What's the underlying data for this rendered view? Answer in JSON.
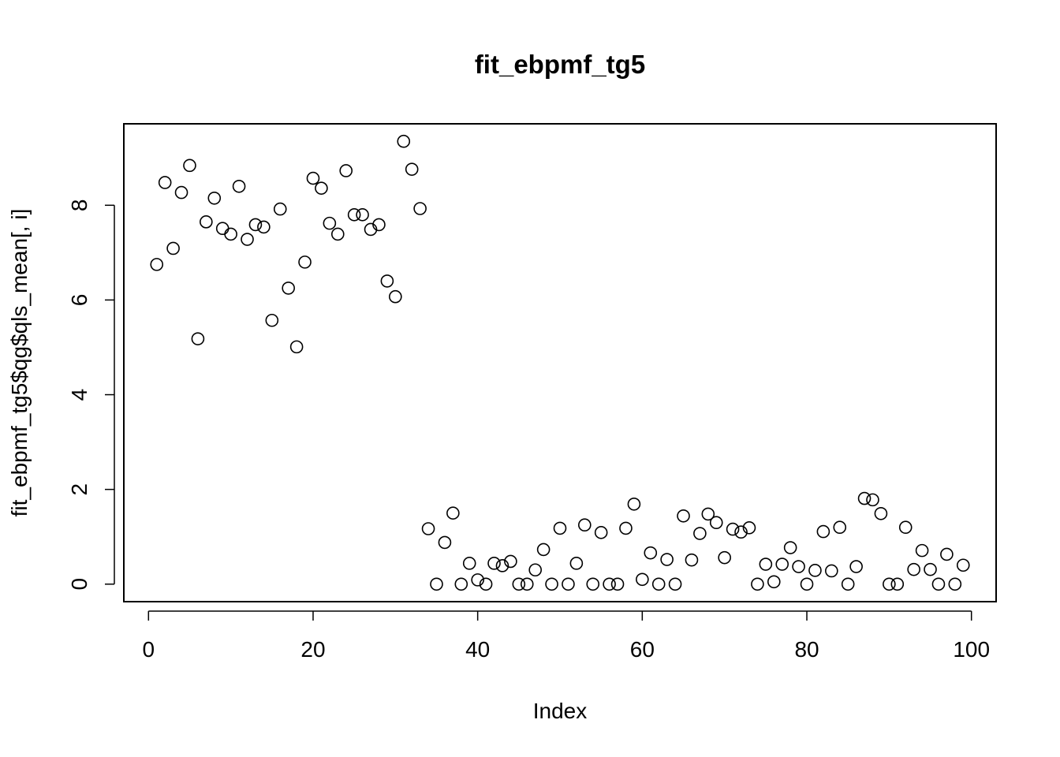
{
  "chart_data": {
    "type": "scatter",
    "title": "fit_ebpmf_tg5",
    "xlabel": "Index",
    "ylabel": "fit_ebpmf_tg5$qg$qls_mean[, i]",
    "xlim": [
      -3,
      103
    ],
    "ylim": [
      -0.37,
      9.72
    ],
    "x_ticks": [
      0,
      20,
      40,
      60,
      80,
      100
    ],
    "y_ticks": [
      0,
      2,
      4,
      6,
      8
    ],
    "x_tick_labels": [
      "0",
      "20",
      "40",
      "60",
      "80",
      "100"
    ],
    "y_tick_labels": [
      "0",
      "2",
      "4",
      "6",
      "8"
    ],
    "marker": "open-circle",
    "grid": false,
    "x": [
      1,
      2,
      3,
      4,
      5,
      6,
      7,
      8,
      9,
      10,
      11,
      12,
      13,
      14,
      15,
      16,
      17,
      18,
      19,
      20,
      21,
      22,
      23,
      24,
      25,
      26,
      27,
      28,
      29,
      30,
      31,
      32,
      33,
      34,
      35,
      36,
      37,
      38,
      39,
      40,
      41,
      42,
      43,
      44,
      45,
      46,
      47,
      48,
      49,
      50,
      51,
      52,
      53,
      54,
      55,
      56,
      57,
      58,
      59,
      60,
      61,
      62,
      63,
      64,
      65,
      66,
      67,
      68,
      69,
      70,
      71,
      72,
      73,
      74,
      75,
      76,
      77,
      78,
      79,
      80,
      81,
      82,
      83,
      84,
      85,
      86,
      87,
      88,
      89,
      90,
      91,
      92,
      93,
      94,
      95,
      96,
      97,
      98,
      99
    ],
    "y": [
      6.75,
      8.48,
      7.09,
      8.27,
      8.84,
      5.18,
      7.65,
      8.15,
      7.51,
      7.39,
      8.4,
      7.28,
      7.59,
      7.54,
      5.57,
      7.92,
      6.25,
      5.01,
      6.8,
      8.57,
      8.36,
      7.62,
      7.39,
      8.73,
      7.8,
      7.8,
      7.49,
      7.59,
      6.4,
      6.07,
      9.35,
      8.76,
      7.93,
      1.17,
      0.0,
      0.88,
      1.5,
      0.0,
      0.44,
      0.09,
      0.0,
      0.44,
      0.39,
      0.48,
      0.0,
      0.0,
      0.3,
      0.73,
      0.0,
      1.18,
      0.0,
      0.44,
      1.25,
      0.0,
      1.09,
      0.0,
      0.0,
      1.18,
      1.69,
      0.1,
      0.66,
      0.0,
      0.52,
      0.0,
      1.44,
      0.51,
      1.07,
      1.48,
      1.3,
      0.56,
      1.16,
      1.1,
      1.19,
      0.0,
      0.42,
      0.05,
      0.42,
      0.77,
      0.37,
      0.0,
      0.29,
      1.11,
      0.28,
      1.2,
      0.0,
      0.37,
      1.81,
      1.78,
      1.49,
      0.0,
      0.0,
      1.2,
      0.31,
      0.71,
      0.31,
      0.0,
      0.63,
      0.0,
      0.4
    ]
  }
}
